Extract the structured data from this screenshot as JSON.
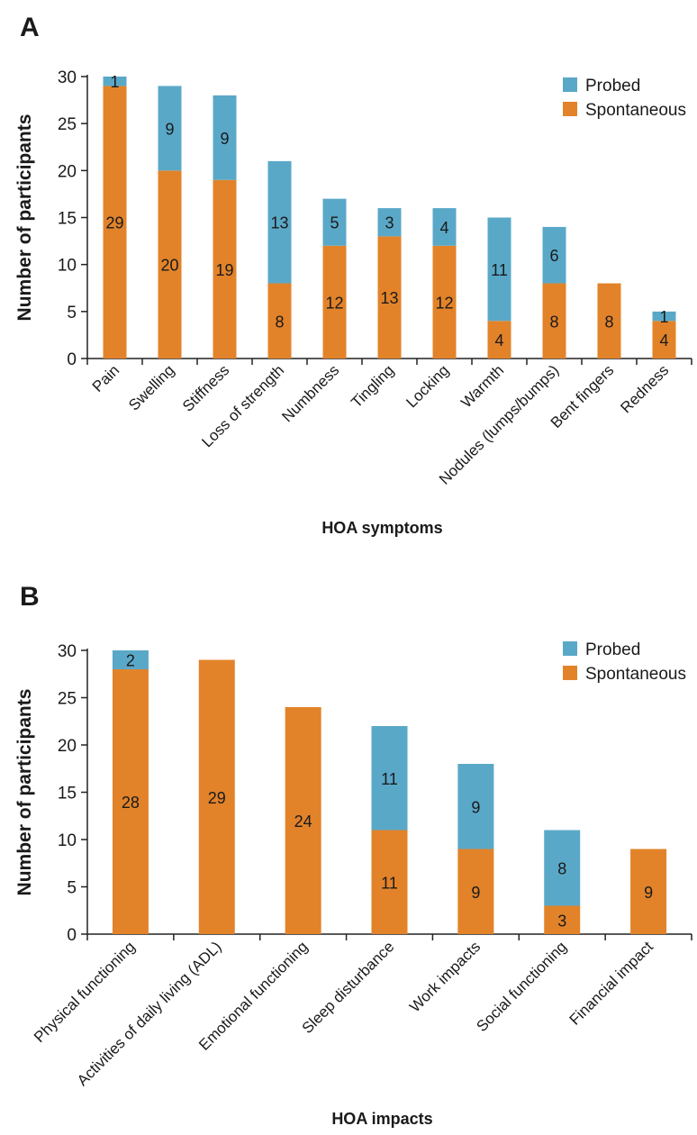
{
  "colors": {
    "probed": "#5AA8C8",
    "spontaneous": "#E2832A",
    "axis": "#222222",
    "text": "#1a1a1a"
  },
  "chart_data": [
    {
      "panel": "A",
      "type": "bar",
      "stacked": true,
      "xlabel": "HOA symptoms",
      "ylabel": "Number of participants",
      "ylim": [
        0,
        30
      ],
      "yticks": [
        0,
        5,
        10,
        15,
        20,
        25,
        30
      ],
      "categories": [
        "Pain",
        "Swelling",
        "Stiffness",
        "Loss of strength",
        "Numbness",
        "Tingling",
        "Locking",
        "Warmth",
        "Nodules (lumps/bumps)",
        "Bent fingers",
        "Redness"
      ],
      "series": [
        {
          "name": "Spontaneous",
          "color_key": "spontaneous",
          "values": [
            29,
            20,
            19,
            8,
            12,
            13,
            12,
            4,
            8,
            8,
            4
          ]
        },
        {
          "name": "Probed",
          "color_key": "probed",
          "values": [
            1,
            9,
            9,
            13,
            5,
            3,
            4,
            11,
            6,
            0,
            1
          ]
        }
      ],
      "legend": {
        "position": "top-right",
        "entries": [
          "Probed",
          "Spontaneous"
        ]
      },
      "grid": false
    },
    {
      "panel": "B",
      "type": "bar",
      "stacked": true,
      "xlabel": "HOA impacts",
      "ylabel": "Number of participants",
      "ylim": [
        0,
        30
      ],
      "yticks": [
        0,
        5,
        10,
        15,
        20,
        25,
        30
      ],
      "categories": [
        "Physical functioning",
        "Activities of daily living (ADL)",
        "Emotional functioning",
        "Sleep disturbance",
        "Work impacts",
        "Social functioning",
        "Financial impact"
      ],
      "series": [
        {
          "name": "Spontaneous",
          "color_key": "spontaneous",
          "values": [
            28,
            29,
            24,
            11,
            9,
            3,
            9
          ]
        },
        {
          "name": "Probed",
          "color_key": "probed",
          "values": [
            2,
            0,
            0,
            11,
            9,
            8,
            0
          ]
        }
      ],
      "legend": {
        "position": "top-right",
        "entries": [
          "Probed",
          "Spontaneous"
        ]
      },
      "grid": false
    }
  ]
}
